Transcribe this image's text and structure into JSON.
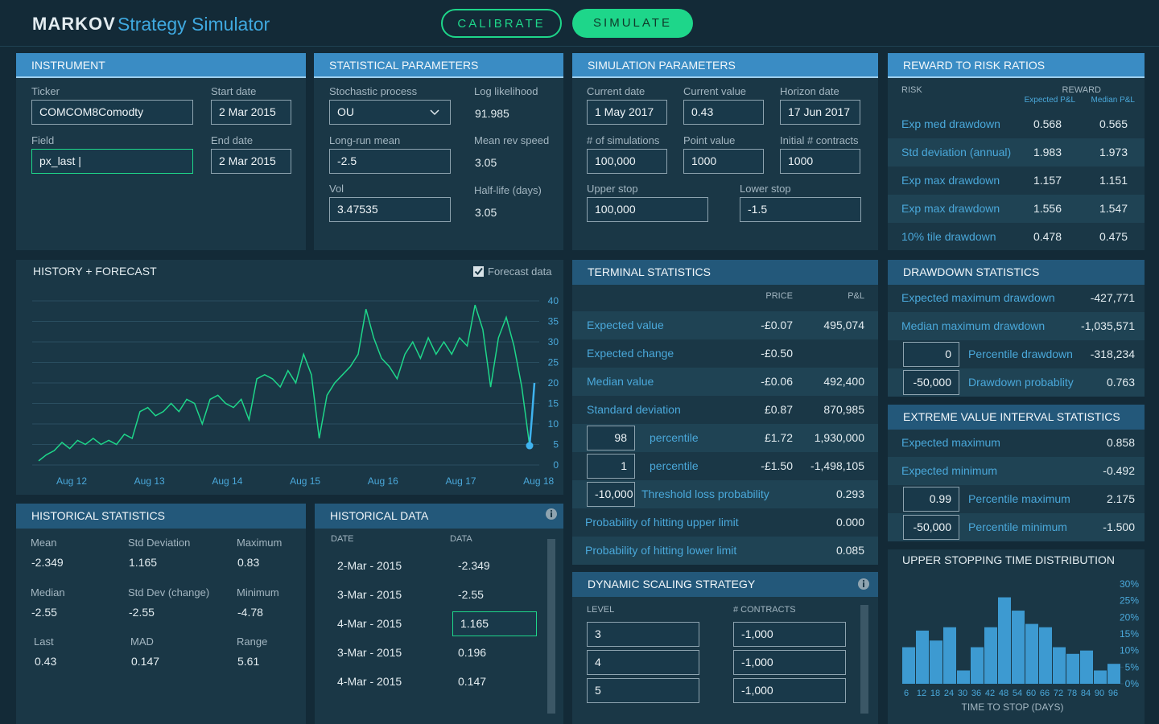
{
  "header": {
    "brand": "MARKOV",
    "title": "Strategy Simulator",
    "calibrate": "CALIBRATE",
    "simulate": "SIMULATE"
  },
  "instrument": {
    "title": "INSTRUMENT",
    "fields": [
      {
        "label": "Ticker",
        "value": "COMCOM8Comodty"
      },
      {
        "label": "Start date",
        "value": "2 Mar 2015"
      },
      {
        "label": "Field",
        "value": "px_last |"
      },
      {
        "label": "End date",
        "value": "2 Mar 2015"
      }
    ]
  },
  "statistical_parameters": {
    "title": "STATISTICAL PARAMETERS",
    "fields": [
      {
        "label": "Stochastic process",
        "value": "OU"
      },
      {
        "label": "Log likelihood",
        "value": "91.985"
      },
      {
        "label": "Long-run mean",
        "value": "-2.5"
      },
      {
        "label": "Mean rev speed",
        "value": "3.05"
      },
      {
        "label": "Vol",
        "value": "3.47535"
      },
      {
        "label": "Half-life (days)",
        "value": "3.05"
      }
    ]
  },
  "simulation_parameters": {
    "title": "SIMULATION PARAMETERS",
    "fields": [
      {
        "label": "Current date",
        "value": "1 May 2017"
      },
      {
        "label": "Current value",
        "value": "0.43"
      },
      {
        "label": "Horizon date",
        "value": "17 Jun 2017"
      },
      {
        "label": "# of simulations",
        "value": "100,000"
      },
      {
        "label": "Point value",
        "value": "1000"
      },
      {
        "label": "Initial # contracts",
        "value": "1000"
      },
      {
        "label": "Upper stop",
        "value": "100,000"
      },
      {
        "label": "Lower stop",
        "value": "-1.5"
      }
    ]
  },
  "reward_to_risk": {
    "title": "REWARD TO RISK RATIOS",
    "risk_label": "RISK",
    "reward_label": "REWARD",
    "columns": [
      "Expected P&L",
      "Median P&L"
    ],
    "rows": [
      {
        "label": "Exp med drawdown",
        "values": [
          "0.568",
          "0.565"
        ]
      },
      {
        "label": "Std deviation (annual)",
        "values": [
          "1.983",
          "1.973"
        ]
      },
      {
        "label": "Exp max drawdown",
        "values": [
          "1.157",
          "1.151"
        ]
      },
      {
        "label": "Exp max drawdown",
        "values": [
          "1.556",
          "1.547"
        ]
      },
      {
        "label": "10% tile drawdown",
        "values": [
          "0.478",
          "0.475"
        ]
      }
    ]
  },
  "history_forecast": {
    "type": "line",
    "title": "HISTORY + FORECAST",
    "checkbox_label": "Forecast data",
    "forecast_checked": true,
    "categories": [
      "Aug 12",
      "Aug 13",
      "Aug 14",
      "Aug 15",
      "Aug 16",
      "Aug 17",
      "Aug 18"
    ],
    "history": {
      "color": "#1ed68a",
      "values": [
        1,
        2.5,
        3.5,
        5.5,
        4,
        6,
        5,
        6.5,
        5,
        6,
        5,
        7.5,
        6.5,
        13,
        14,
        12,
        13,
        15,
        13,
        16,
        15,
        10,
        16,
        17,
        15,
        14,
        16,
        11,
        21,
        22,
        21,
        19,
        23,
        20,
        27,
        22,
        6.5,
        17,
        20,
        22,
        24,
        27,
        38,
        31,
        26,
        24,
        21,
        27,
        30,
        26,
        31,
        27,
        30,
        27,
        31,
        29,
        39,
        33,
        19,
        31,
        36,
        29,
        19,
        4.7
      ]
    },
    "forecast": {
      "color": "#3fb3ef",
      "values": [
        4.7,
        12,
        20
      ]
    },
    "ylim": [
      0,
      40
    ],
    "yticks": [
      0,
      5,
      10,
      15,
      20,
      25,
      30,
      35,
      40
    ],
    "grid": true
  },
  "terminal_statistics": {
    "title": "TERMINAL STATISTICS",
    "columns": [
      "PRICE",
      "P&L"
    ],
    "rows": [
      {
        "label": "Expected value",
        "price": "-£0.07",
        "pnl": "495,074"
      },
      {
        "label": "Expected change",
        "price": "-£0.50"
      },
      {
        "label": "Median value",
        "price": "-£0.06",
        "pnl": "492,400"
      },
      {
        "label": "Standard deviation",
        "price": "£0.87",
        "pnl": "870,985"
      },
      {
        "input": "98",
        "label": "percentile",
        "price": "£1.72",
        "pnl": "1,930,000"
      },
      {
        "input": "1",
        "label": "percentile",
        "price": "-£1.50",
        "pnl": "-1,498,105"
      },
      {
        "input": "-10,000",
        "label": "Threshold loss probability",
        "pnl": "0.293"
      },
      {
        "label": "Probability of hitting upper limit",
        "pnl": "0.000"
      },
      {
        "label": "Probability of hitting lower limit",
        "pnl": "0.085"
      }
    ]
  },
  "drawdown_statistics": {
    "title": "DRAWDOWN STATISTICS",
    "rows": [
      {
        "label": "Expected maximum drawdown",
        "value": "-427,771"
      },
      {
        "label": "Median maximum drawdown",
        "value": "-1,035,571"
      },
      {
        "input": "0",
        "label": "Percentile drawdown",
        "value": "-318,234"
      },
      {
        "input": "-50,000",
        "label": "Drawdown probablity",
        "value": "0.763"
      }
    ]
  },
  "extreme_value_statistics": {
    "title": "EXTREME VALUE INTERVAL STATISTICS",
    "rows": [
      {
        "label": "Expected maximum",
        "value": "0.858"
      },
      {
        "label": "Expected minimum",
        "value": "-0.492"
      },
      {
        "input": "0.99",
        "label": "Percentile maximum",
        "value": "2.175"
      },
      {
        "input": "-50,000",
        "label": "Percentile minimum",
        "value": "-1.500"
      }
    ]
  },
  "stopping_time": {
    "type": "bar",
    "title": "UPPER STOPPING TIME DISTRIBUTION",
    "x_label": "TIME TO STOP (DAYS)",
    "categories": [
      "6",
      "12",
      "18",
      "24",
      "30",
      "36",
      "42",
      "48",
      "54",
      "60",
      "66",
      "72",
      "78",
      "84",
      "90",
      "96"
    ],
    "values": [
      11,
      16,
      13,
      17,
      4,
      11,
      17,
      26,
      22,
      18,
      17,
      11,
      9,
      10,
      4,
      6
    ],
    "color": "#3d9ad1",
    "ylim": [
      0,
      30
    ],
    "yticks": [
      {
        "value": 0,
        "label": "0%"
      },
      {
        "value": 5,
        "label": "5%"
      },
      {
        "value": 10,
        "label": "10%"
      },
      {
        "value": 15,
        "label": "15%"
      },
      {
        "value": 20,
        "label": "20%"
      },
      {
        "value": 25,
        "label": "25%"
      },
      {
        "value": 30,
        "label": "30%"
      }
    ]
  },
  "historical_statistics": {
    "title": "HISTORICAL STATISTICS",
    "items": [
      {
        "label": "Mean",
        "value": "-2.349"
      },
      {
        "label": "Std Deviation",
        "value": "1.165"
      },
      {
        "label": "Maximum",
        "value": "0.83"
      },
      {
        "label": "Median",
        "value": "-2.55"
      },
      {
        "label": "Std Dev (change)",
        "value": "-2.55"
      },
      {
        "label": "Minimum",
        "value": "-4.78"
      },
      {
        "label": "Last",
        "value": "0.43"
      },
      {
        "label": "MAD",
        "value": "0.147"
      },
      {
        "label": "Range",
        "value": "5.61"
      }
    ]
  },
  "historical_data": {
    "title": "HISTORICAL DATA",
    "columns": [
      "DATE",
      "DATA"
    ],
    "selected_row": 2,
    "rows": [
      [
        "2-Mar - 2015",
        "-2.349"
      ],
      [
        "3-Mar - 2015",
        "-2.55"
      ],
      [
        "4-Mar - 2015",
        "1.165"
      ],
      [
        "3-Mar - 2015",
        "0.196"
      ],
      [
        "4-Mar - 2015",
        "0.147"
      ]
    ]
  },
  "dynamic_scaling": {
    "title": "DYNAMIC SCALING STRATEGY",
    "columns": [
      "LEVEL",
      "# CONTRACTS"
    ],
    "rows": [
      [
        "3",
        "-1,000"
      ],
      [
        "4",
        "-1,000"
      ],
      [
        "5",
        "-1,000"
      ]
    ]
  }
}
